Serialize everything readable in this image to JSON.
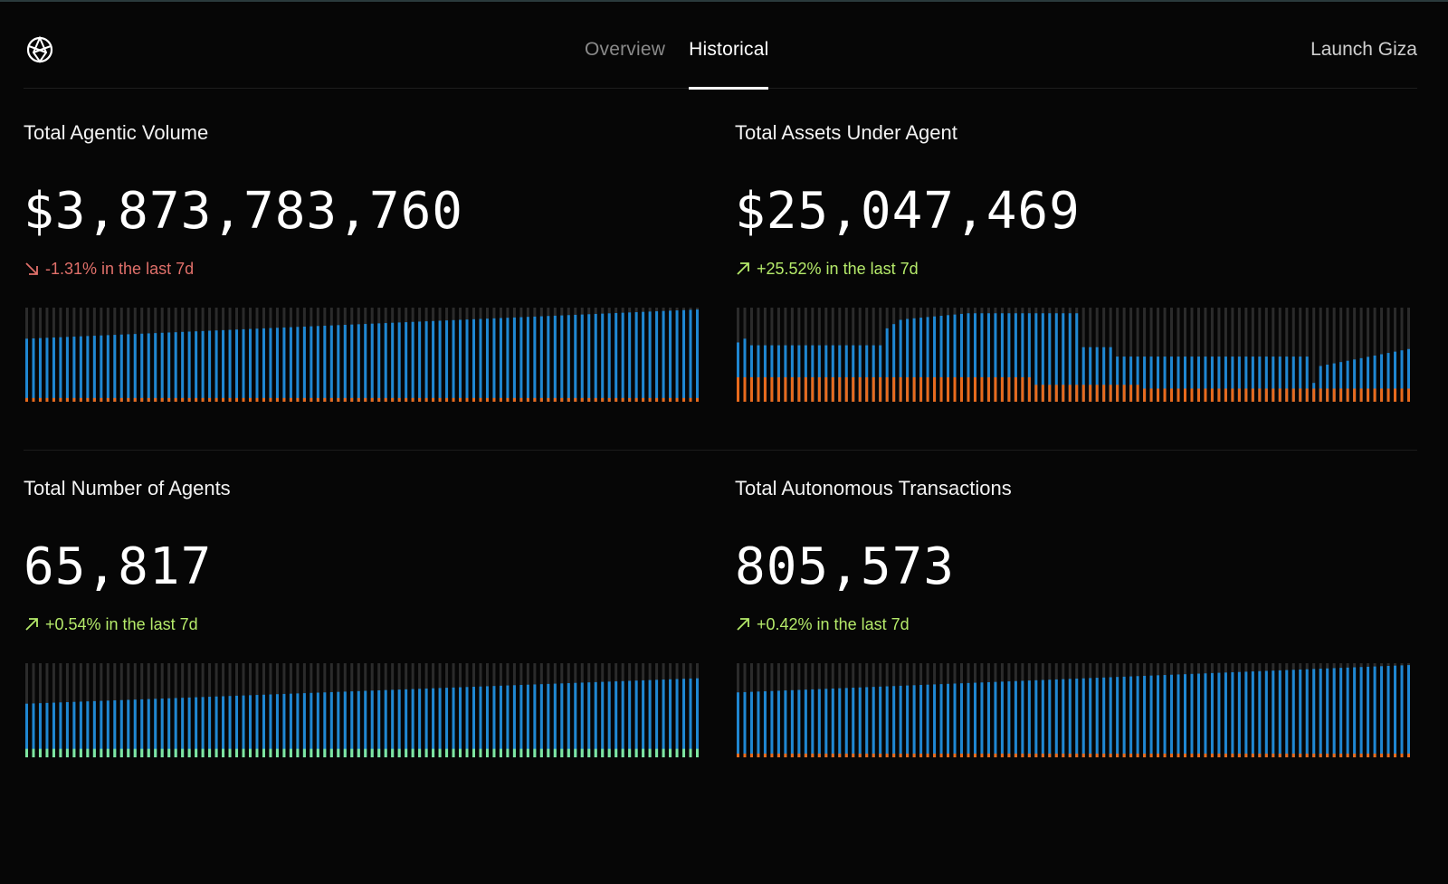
{
  "header": {
    "logo_icon": "giza-logo-icon",
    "tabs": [
      {
        "label": "Overview",
        "active": false
      },
      {
        "label": "Historical",
        "active": true
      }
    ],
    "launch_label": "Launch Giza"
  },
  "colors": {
    "background": "#060606",
    "track": "#2b2b2b",
    "series_blue": "#1f87d2",
    "series_orange": "#e86a1c",
    "series_green": "#7ee6a0",
    "positive": "#b5ea6a",
    "negative": "#e0706a"
  },
  "panels": [
    {
      "title": "Total Agentic Volume",
      "value": "$3,873,783,760",
      "change": "-1.31% in the last 7d",
      "direction": "down",
      "chart_id": "volume"
    },
    {
      "title": "Total Assets Under Agent",
      "value": "$25,047,469",
      "change": "+25.52% in the last 7d",
      "direction": "up",
      "chart_id": "assets"
    },
    {
      "title": "Total Number of Agents",
      "value": "65,817",
      "change": "+0.54% in the last 7d",
      "direction": "up",
      "chart_id": "agents"
    },
    {
      "title": "Total Autonomous Transactions",
      "value": "805,573",
      "change": "+0.42% in the last 7d",
      "direction": "up",
      "chart_id": "transactions"
    }
  ],
  "chart_data": [
    {
      "id": "volume",
      "type": "bar",
      "bars": 100,
      "ylim": [
        0,
        1
      ],
      "series": [
        {
          "name": "primary",
          "color": "#1f87d2",
          "start": 0.67,
          "end": 0.98
        },
        {
          "name": "secondary",
          "color": "#e86a1c",
          "value": 0.04
        }
      ]
    },
    {
      "id": "assets",
      "type": "bar",
      "bars": 100,
      "ylim": [
        0,
        1
      ],
      "series": [
        {
          "name": "primary",
          "color": "#1f87d2",
          "segments": [
            {
              "from": 0,
              "to": 1,
              "value": 0.63
            },
            {
              "from": 1,
              "to": 2,
              "value": 0.67
            },
            {
              "from": 2,
              "to": 21,
              "value": 0.6
            },
            {
              "from": 21,
              "to": 22,
              "value": 0.6
            },
            {
              "from": 22,
              "to": 25,
              "value": 0.78,
              "ramp_to": 0.87
            },
            {
              "from": 25,
              "to": 35,
              "value": 0.88,
              "ramp_to": 0.94
            },
            {
              "from": 35,
              "to": 50,
              "value": 0.94
            },
            {
              "from": 50,
              "to": 51,
              "value": 0.94
            },
            {
              "from": 51,
              "to": 56,
              "value": 0.58
            },
            {
              "from": 56,
              "to": 85,
              "value": 0.48
            },
            {
              "from": 85,
              "to": 86,
              "value": 0.2
            },
            {
              "from": 86,
              "to": 100,
              "value": 0.38,
              "ramp_to": 0.56
            }
          ]
        },
        {
          "name": "secondary",
          "color": "#e86a1c",
          "segments": [
            {
              "from": 0,
              "to": 44,
              "value": 0.26
            },
            {
              "from": 44,
              "to": 60,
              "value": 0.18
            },
            {
              "from": 60,
              "to": 100,
              "value": 0.14
            }
          ]
        }
      ]
    },
    {
      "id": "agents",
      "type": "bar",
      "bars": 100,
      "ylim": [
        0,
        1
      ],
      "series": [
        {
          "name": "primary",
          "color": "#1f87d2",
          "start": 0.57,
          "end": 0.84
        },
        {
          "name": "secondary",
          "color": "#7ee6a0",
          "value": 0.09
        }
      ]
    },
    {
      "id": "transactions",
      "type": "bar",
      "bars": 100,
      "ylim": [
        0,
        1
      ],
      "series": [
        {
          "name": "primary",
          "color": "#1f87d2",
          "start": 0.69,
          "end": 0.98
        },
        {
          "name": "secondary",
          "color": "#e86a1c",
          "value": 0.04
        }
      ]
    }
  ]
}
